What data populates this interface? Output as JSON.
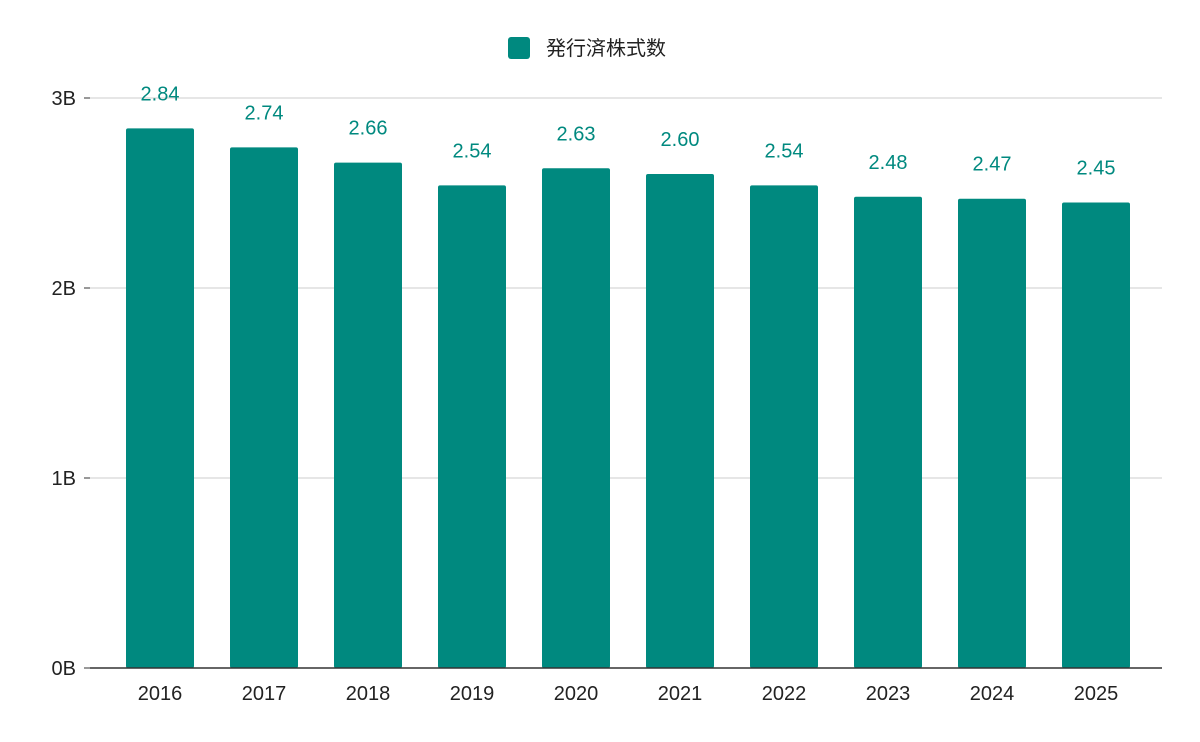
{
  "chart_data": {
    "type": "bar",
    "title": "",
    "xlabel": "",
    "ylabel": "",
    "legend": {
      "position": "top-center",
      "label": "発行済株式数"
    },
    "categories": [
      "2016",
      "2017",
      "2018",
      "2019",
      "2020",
      "2021",
      "2022",
      "2023",
      "2024",
      "2025"
    ],
    "series": [
      {
        "name": "発行済株式数",
        "values": [
          2.84,
          2.74,
          2.66,
          2.54,
          2.63,
          2.6,
          2.54,
          2.48,
          2.47,
          2.45
        ],
        "data_labels": [
          "2.84",
          "2.74",
          "2.66",
          "2.54",
          "2.63",
          "2.60",
          "2.54",
          "2.48",
          "2.47",
          "2.45"
        ],
        "color": "#00897f"
      }
    ],
    "ylim": [
      0,
      3
    ],
    "yticks": [
      {
        "value": 0,
        "label": "0B"
      },
      {
        "value": 1,
        "label": "1B"
      },
      {
        "value": 2,
        "label": "2B"
      },
      {
        "value": 3,
        "label": "3B"
      }
    ],
    "grid": true,
    "colors": {
      "bar": "#00897f",
      "grid": "#cccccc",
      "axis": "#333333",
      "text": "#222222",
      "data_label": "#00897f"
    }
  }
}
